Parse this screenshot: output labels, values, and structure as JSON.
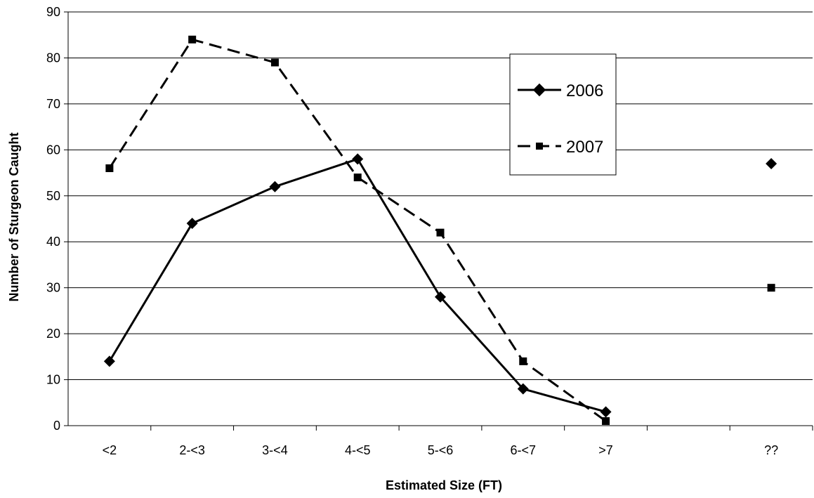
{
  "chart_data": {
    "type": "line",
    "title": "",
    "xlabel": "Estimated Size (FT)",
    "ylabel": "Number of Sturgeon Caught",
    "categories": [
      "<2",
      "2-<3",
      "3-<4",
      "4-<5",
      "5-<6",
      "6-<7",
      ">7",
      "",
      "??"
    ],
    "ylim": [
      0,
      90
    ],
    "yticks": [
      0,
      10,
      20,
      30,
      40,
      50,
      60,
      70,
      80,
      90
    ],
    "grid": true,
    "legend_position": "top-right",
    "series": [
      {
        "name": "2006",
        "marker": "diamond",
        "line_style": "solid",
        "color": "#000000",
        "values": [
          14,
          44,
          52,
          58,
          28,
          8,
          3,
          null,
          57
        ]
      },
      {
        "name": "2007",
        "marker": "square",
        "line_style": "dashed",
        "color": "#000000",
        "values": [
          56,
          84,
          79,
          54,
          42,
          14,
          1,
          null,
          30
        ]
      }
    ]
  }
}
